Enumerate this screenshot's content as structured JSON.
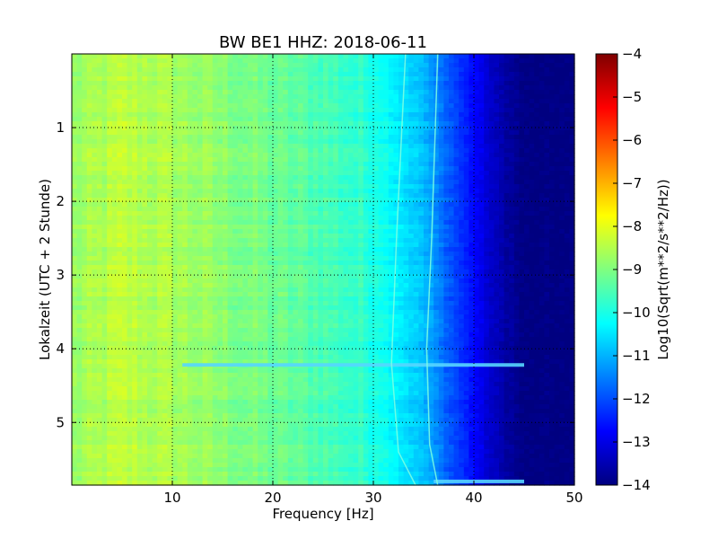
{
  "chart_data": {
    "type": "heatmap",
    "title": "BW BE1 HHZ: 2018-06-11",
    "xlabel": "Frequency [Hz]",
    "ylabel": "Lokalzeit (UTC + 2 Stunde)",
    "xlim": [
      0,
      50
    ],
    "ylim": [
      5.85,
      0
    ],
    "x_ticks": [
      10,
      20,
      30,
      40,
      50
    ],
    "y_ticks": [
      1,
      2,
      3,
      4,
      5
    ],
    "grid": true,
    "grid_style": "dotted",
    "colorbar": {
      "label": "Log10(Sqrt(m**2/s**2/Hz))",
      "range": [
        -14,
        -4
      ],
      "ticks": [
        -4,
        -5,
        -6,
        -7,
        -8,
        -9,
        -10,
        -11,
        -12,
        -13,
        -14
      ],
      "colormap": "jet"
    },
    "spectral_profile": {
      "frequency_hz": [
        0,
        5,
        10,
        15,
        20,
        25,
        30,
        32,
        35,
        37,
        40,
        42,
        45,
        50
      ],
      "log10_amplitude": [
        -8.8,
        -8.4,
        -8.6,
        -8.9,
        -9.2,
        -9.5,
        -9.9,
        -10.3,
        -10.9,
        -11.7,
        -12.7,
        -13.4,
        -14.0,
        -14.0
      ]
    },
    "features": [
      {
        "type": "horizontal_band",
        "time": 4.22,
        "freq_range": [
          11,
          45
        ]
      },
      {
        "type": "horizontal_band",
        "time": 5.8,
        "freq_range": [
          36,
          45
        ]
      },
      {
        "type": "drifting_line",
        "points": [
          [
            33.2,
            0
          ],
          [
            32.3,
            2.5
          ],
          [
            31.8,
            4.2
          ],
          [
            32.5,
            5.4
          ],
          [
            34.2,
            5.85
          ]
        ]
      },
      {
        "type": "drifting_line",
        "points": [
          [
            36.4,
            0
          ],
          [
            35.8,
            2.5
          ],
          [
            35.3,
            4.0
          ],
          [
            35.6,
            5.3
          ],
          [
            36.4,
            5.85
          ]
        ]
      }
    ]
  }
}
